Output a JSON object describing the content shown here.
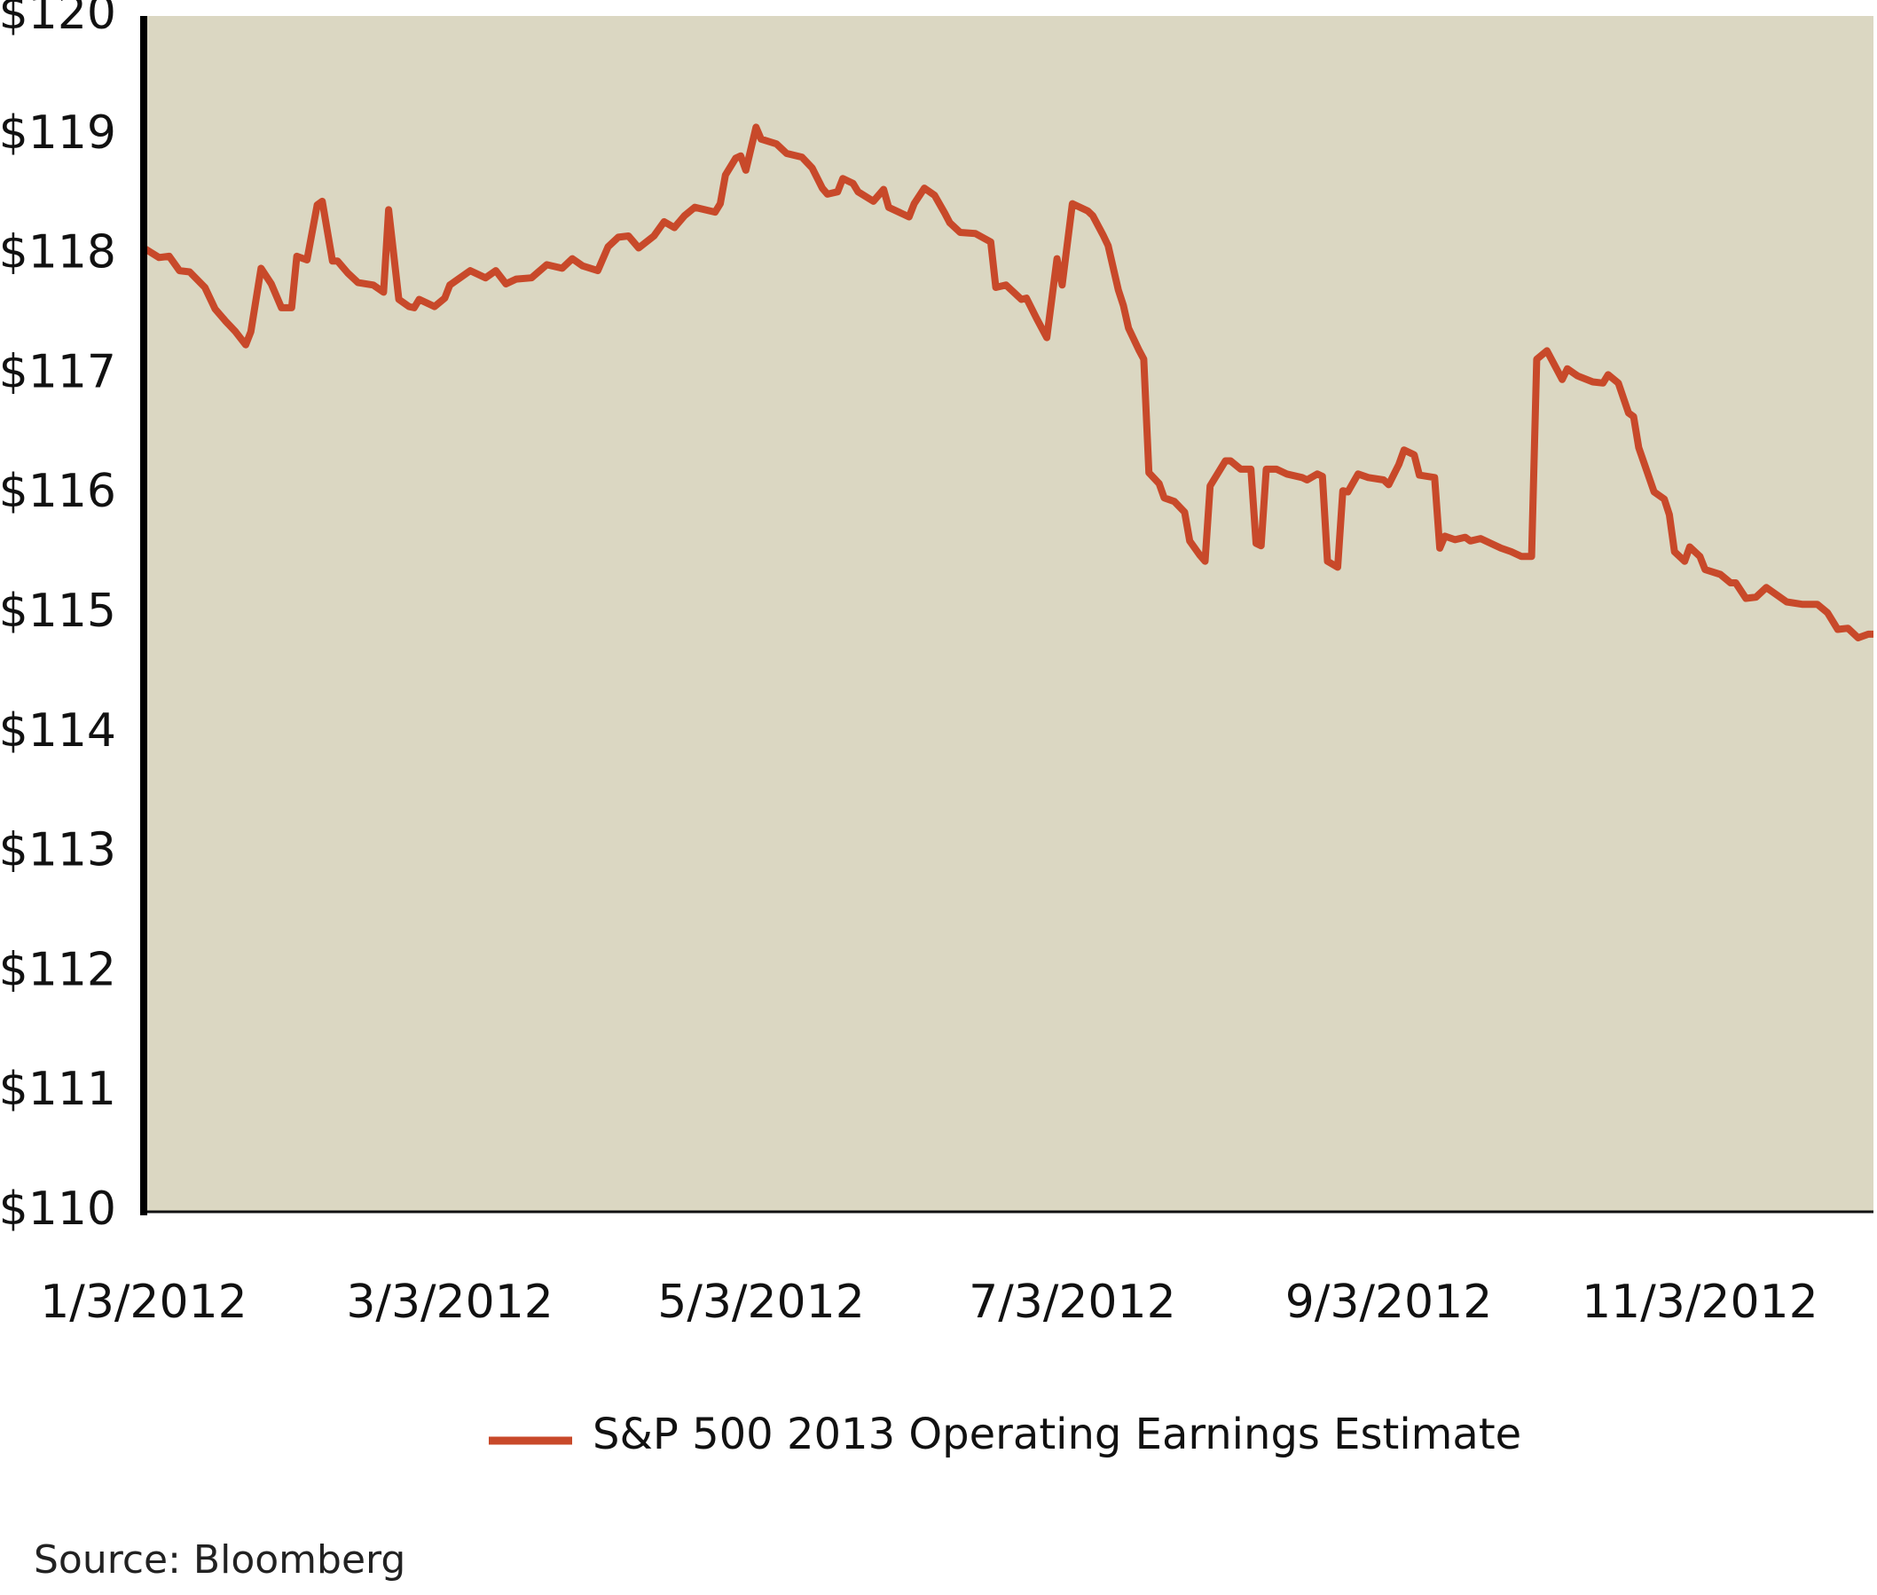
{
  "chart_data": {
    "type": "line",
    "source": "Source: Bloomberg",
    "x": [
      "2012-01-03",
      "2012-01-06",
      "2012-01-08",
      "2012-01-10",
      "2012-01-12",
      "2012-01-15",
      "2012-01-17",
      "2012-01-19",
      "2012-01-21",
      "2012-01-23",
      "2012-01-24",
      "2012-01-26",
      "2012-01-28",
      "2012-01-30",
      "2012-02-01",
      "2012-02-02",
      "2012-02-04",
      "2012-02-06",
      "2012-02-07",
      "2012-02-09",
      "2012-02-10",
      "2012-02-12",
      "2012-02-14",
      "2012-02-17",
      "2012-02-19",
      "2012-02-20",
      "2012-02-22",
      "2012-02-24",
      "2012-02-25",
      "2012-02-26",
      "2012-02-29",
      "2012-03-02",
      "2012-03-03",
      "2012-03-07",
      "2012-03-10",
      "2012-03-12",
      "2012-03-14",
      "2012-03-16",
      "2012-03-19",
      "2012-03-22",
      "2012-03-25",
      "2012-03-27",
      "2012-03-29",
      "2012-04-01",
      "2012-04-03",
      "2012-04-05",
      "2012-04-07",
      "2012-04-09",
      "2012-04-12",
      "2012-04-14",
      "2012-04-16",
      "2012-04-18",
      "2012-04-20",
      "2012-04-24",
      "2012-04-25",
      "2012-04-26",
      "2012-04-28",
      "2012-04-29",
      "2012-04-30",
      "2012-05-02",
      "2012-05-03",
      "2012-05-06",
      "2012-05-08",
      "2012-05-11",
      "2012-05-13",
      "2012-05-15",
      "2012-05-16",
      "2012-05-18",
      "2012-05-19",
      "2012-05-21",
      "2012-05-22",
      "2012-05-25",
      "2012-05-27",
      "2012-05-28",
      "2012-06-01",
      "2012-06-02",
      "2012-06-04",
      "2012-06-06",
      "2012-06-08",
      "2012-06-09",
      "2012-06-11",
      "2012-06-14",
      "2012-06-17",
      "2012-06-18",
      "2012-06-20",
      "2012-06-23",
      "2012-06-24",
      "2012-06-26",
      "2012-06-28",
      "2012-06-30",
      "2012-07-01",
      "2012-07-03",
      "2012-07-06",
      "2012-07-07",
      "2012-07-09",
      "2012-07-10",
      "2012-07-12",
      "2012-07-13",
      "2012-07-14",
      "2012-07-16",
      "2012-07-17",
      "2012-07-18",
      "2012-07-20",
      "2012-07-21",
      "2012-07-23",
      "2012-07-25",
      "2012-07-26",
      "2012-07-28",
      "2012-07-29",
      "2012-07-30",
      "2012-08-02",
      "2012-08-03",
      "2012-08-05",
      "2012-08-07",
      "2012-08-08",
      "2012-08-09",
      "2012-08-10",
      "2012-08-12",
      "2012-08-14",
      "2012-08-17",
      "2012-08-18",
      "2012-08-20",
      "2012-08-21",
      "2012-08-22",
      "2012-08-24",
      "2012-08-25",
      "2012-08-26",
      "2012-08-28",
      "2012-08-30",
      "2012-09-02",
      "2012-09-03",
      "2012-09-05",
      "2012-09-06",
      "2012-09-08",
      "2012-09-09",
      "2012-09-12",
      "2012-09-13",
      "2012-09-14",
      "2012-09-16",
      "2012-09-18",
      "2012-09-19",
      "2012-09-21",
      "2012-09-23",
      "2012-09-25",
      "2012-09-27",
      "2012-09-29",
      "2012-10-01",
      "2012-10-02",
      "2012-10-04",
      "2012-10-07",
      "2012-10-08",
      "2012-10-10",
      "2012-10-13",
      "2012-10-15",
      "2012-10-16",
      "2012-10-18",
      "2012-10-20",
      "2012-10-21",
      "2012-10-22",
      "2012-10-25",
      "2012-10-27",
      "2012-10-28",
      "2012-10-29",
      "2012-10-31",
      "2012-11-01",
      "2012-11-03",
      "2012-11-04",
      "2012-11-07",
      "2012-11-09",
      "2012-11-10",
      "2012-11-12",
      "2012-11-14",
      "2012-11-16",
      "2012-11-17",
      "2012-11-20",
      "2012-11-23",
      "2012-11-26",
      "2012-11-28",
      "2012-11-30",
      "2012-12-02",
      "2012-12-04",
      "2012-12-06",
      "2012-12-07"
    ],
    "series": [
      {
        "name": "S&P 500 2013 Operating Earnings Estimate",
        "color": "#c8492a",
        "values": [
          118.06,
          117.98,
          117.99,
          117.87,
          117.86,
          117.73,
          117.55,
          117.45,
          117.36,
          117.25,
          117.36,
          117.89,
          117.76,
          117.56,
          117.56,
          117.99,
          117.96,
          118.42,
          118.45,
          117.95,
          117.95,
          117.85,
          117.77,
          117.75,
          117.69,
          118.38,
          117.63,
          117.57,
          117.56,
          117.63,
          117.57,
          117.64,
          117.75,
          117.87,
          117.81,
          117.87,
          117.76,
          117.8,
          117.81,
          117.92,
          117.89,
          117.97,
          117.91,
          117.87,
          118.07,
          118.15,
          118.16,
          118.06,
          118.16,
          118.28,
          118.23,
          118.33,
          118.4,
          118.36,
          118.43,
          118.67,
          118.81,
          118.83,
          118.71,
          119.07,
          118.97,
          118.93,
          118.85,
          118.82,
          118.73,
          118.56,
          118.51,
          118.53,
          118.64,
          118.6,
          118.53,
          118.45,
          118.55,
          118.4,
          118.32,
          118.43,
          118.56,
          118.5,
          118.35,
          118.27,
          118.19,
          118.18,
          118.11,
          117.73,
          117.75,
          117.63,
          117.64,
          117.47,
          117.31,
          117.97,
          117.75,
          118.43,
          118.37,
          118.33,
          118.17,
          118.08,
          117.71,
          117.58,
          117.39,
          117.21,
          117.13,
          116.18,
          116.09,
          115.97,
          115.94,
          115.85,
          115.61,
          115.49,
          115.44,
          116.07,
          116.28,
          116.28,
          116.21,
          116.21,
          115.59,
          115.57,
          116.21,
          116.21,
          116.17,
          116.14,
          116.12,
          116.17,
          116.15,
          115.44,
          115.39,
          116.03,
          116.02,
          116.17,
          116.14,
          116.12,
          116.08,
          116.25,
          116.37,
          116.33,
          116.16,
          116.14,
          115.55,
          115.65,
          115.62,
          115.64,
          115.61,
          115.63,
          115.59,
          115.55,
          115.52,
          115.48,
          115.48,
          117.13,
          117.2,
          116.96,
          117.05,
          116.99,
          116.94,
          116.93,
          117.0,
          116.93,
          116.68,
          116.65,
          116.39,
          116.02,
          115.96,
          115.83,
          115.52,
          115.44,
          115.56,
          115.48,
          115.37,
          115.33,
          115.26,
          115.26,
          115.13,
          115.14,
          115.22,
          115.19,
          115.1,
          115.08,
          115.08,
          115.01,
          114.87,
          114.88,
          114.8,
          114.83,
          114.83
        ]
      }
    ],
    "xlim": [
      "2012-01-03",
      "2012-12-07"
    ],
    "xticks": [
      {
        "value": "2012-01-03",
        "label": "1/3/2012"
      },
      {
        "value": "2012-03-03",
        "label": "3/3/2012"
      },
      {
        "value": "2012-05-03",
        "label": "5/3/2012"
      },
      {
        "value": "2012-07-03",
        "label": "7/3/2012"
      },
      {
        "value": "2012-09-03",
        "label": "9/3/2012"
      },
      {
        "value": "2012-11-03",
        "label": "11/3/2012"
      }
    ],
    "ylim": [
      110,
      120
    ],
    "yticks": [
      {
        "value": 110,
        "label": "$110"
      },
      {
        "value": 111,
        "label": "$111"
      },
      {
        "value": 112,
        "label": "$112"
      },
      {
        "value": 113,
        "label": "$113"
      },
      {
        "value": 114,
        "label": "$114"
      },
      {
        "value": 115,
        "label": "$115"
      },
      {
        "value": 116,
        "label": "$116"
      },
      {
        "value": 117,
        "label": "$117"
      },
      {
        "value": 118,
        "label": "$118"
      },
      {
        "value": 119,
        "label": "$119"
      },
      {
        "value": 120,
        "label": "$120"
      }
    ],
    "grid": false,
    "legend": "bottom",
    "background": "#dbd7c2"
  }
}
